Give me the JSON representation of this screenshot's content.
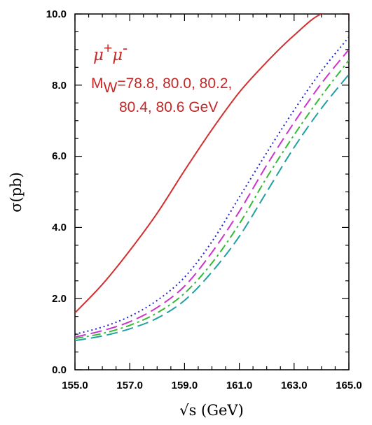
{
  "chart_data": {
    "type": "line",
    "xlabel": "√s (GeV)",
    "ylabel": "σ(pb)",
    "xlim": [
      155.0,
      165.0
    ],
    "ylim": [
      0.0,
      10.0
    ],
    "x_ticks": [
      "155.0",
      "157.0",
      "159.0",
      "161.0",
      "163.0",
      "165.0"
    ],
    "y_ticks": [
      "0.0",
      "2.0",
      "4.0",
      "6.0",
      "8.0",
      "10.0"
    ],
    "grid": false,
    "annotation": {
      "process_mu": "μ",
      "process_plus": "+",
      "process_minus": "-",
      "mw_prefix": "M",
      "mw_sub": "W",
      "mw_line1": "=78.8, 80.0, 80.2,",
      "mw_line2": "80.4, 80.6 GeV"
    },
    "series": [
      {
        "color": "#d32f2f",
        "dash": "solid",
        "x": [
          155,
          156,
          157,
          158,
          159,
          160,
          161,
          162,
          163,
          164,
          165
        ],
        "y": [
          1.6,
          2.4,
          3.35,
          4.4,
          5.6,
          6.75,
          7.8,
          8.65,
          9.4,
          10.0,
          10.0
        ]
      },
      {
        "color": "#2222cc",
        "dash": "dotted",
        "x": [
          155,
          156,
          157,
          158,
          159,
          160,
          161,
          162,
          163,
          164,
          165
        ],
        "y": [
          1.0,
          1.2,
          1.5,
          1.95,
          2.6,
          3.6,
          4.85,
          6.1,
          7.3,
          8.4,
          9.35
        ]
      },
      {
        "color": "#cc33cc",
        "dash": "long-dash",
        "x": [
          155,
          156,
          157,
          158,
          159,
          160,
          161,
          162,
          163,
          164,
          165
        ],
        "y": [
          0.92,
          1.1,
          1.35,
          1.75,
          2.35,
          3.3,
          4.45,
          5.75,
          6.95,
          8.05,
          9.0
        ]
      },
      {
        "color": "#33bb33",
        "dash": "dash-dot",
        "x": [
          155,
          156,
          157,
          158,
          159,
          160,
          161,
          162,
          163,
          164,
          165
        ],
        "y": [
          0.88,
          1.02,
          1.25,
          1.6,
          2.15,
          3.0,
          4.1,
          5.4,
          6.6,
          7.7,
          8.7
        ]
      },
      {
        "color": "#20a0a0",
        "dash": "long-dash",
        "x": [
          155,
          156,
          157,
          158,
          159,
          160,
          161,
          162,
          163,
          164,
          165
        ],
        "y": [
          0.82,
          0.95,
          1.15,
          1.45,
          1.95,
          2.75,
          3.75,
          5.0,
          6.25,
          7.35,
          8.3
        ]
      }
    ]
  }
}
